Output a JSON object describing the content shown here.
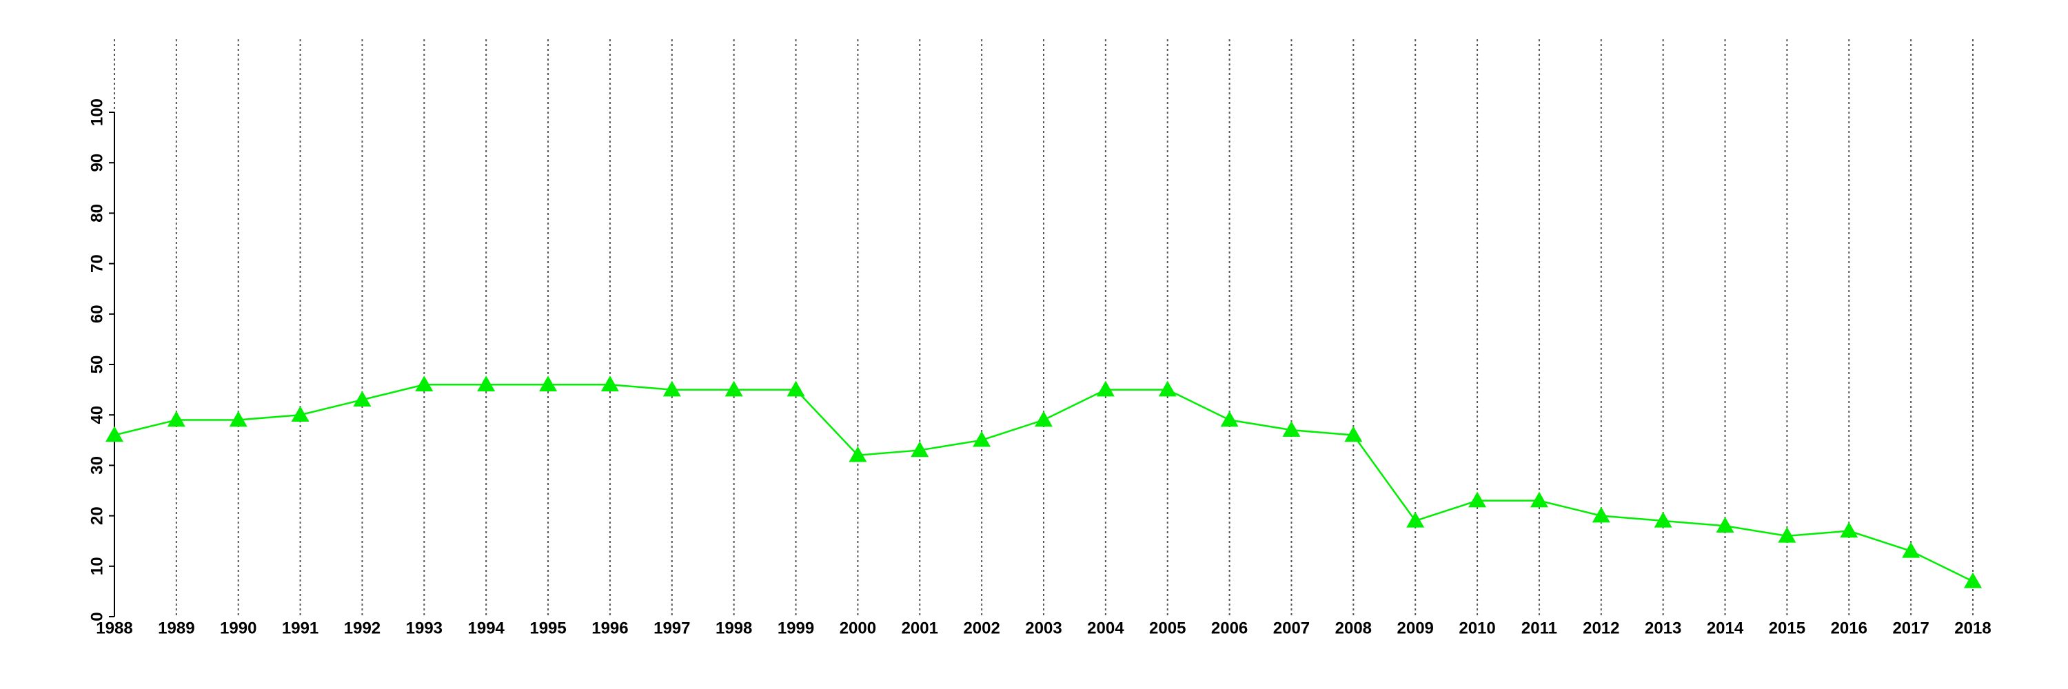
{
  "chart_data": {
    "type": "line",
    "x": [
      1988,
      1989,
      1990,
      1991,
      1992,
      1993,
      1994,
      1995,
      1996,
      1997,
      1998,
      1999,
      2000,
      2001,
      2002,
      2003,
      2004,
      2005,
      2006,
      2007,
      2008,
      2009,
      2010,
      2011,
      2012,
      2013,
      2014,
      2015,
      2016,
      2017,
      2018
    ],
    "series": [
      {
        "color": "#00ee00",
        "values": [
          36,
          39,
          39,
          40,
          43,
          46,
          46,
          46,
          46,
          45,
          45,
          45,
          32,
          33,
          35,
          39,
          45,
          45,
          39,
          37,
          36,
          19,
          23,
          23,
          20,
          19,
          18,
          16,
          17,
          13,
          7
        ]
      }
    ],
    "xlim": [
      1988,
      2018
    ],
    "xticks": [
      1988,
      1989,
      1990,
      1991,
      1992,
      1993,
      1994,
      1995,
      1996,
      1997,
      1998,
      1999,
      2000,
      2001,
      2002,
      2003,
      2004,
      2005,
      2006,
      2007,
      2008,
      2009,
      2010,
      2011,
      2012,
      2013,
      2014,
      2015,
      2016,
      2017,
      2018
    ],
    "ylim": [
      0,
      100
    ],
    "yticks": [
      0,
      10,
      20,
      30,
      40,
      50,
      60,
      70,
      80,
      90,
      100
    ],
    "grid": "x",
    "marker": "triangle"
  }
}
